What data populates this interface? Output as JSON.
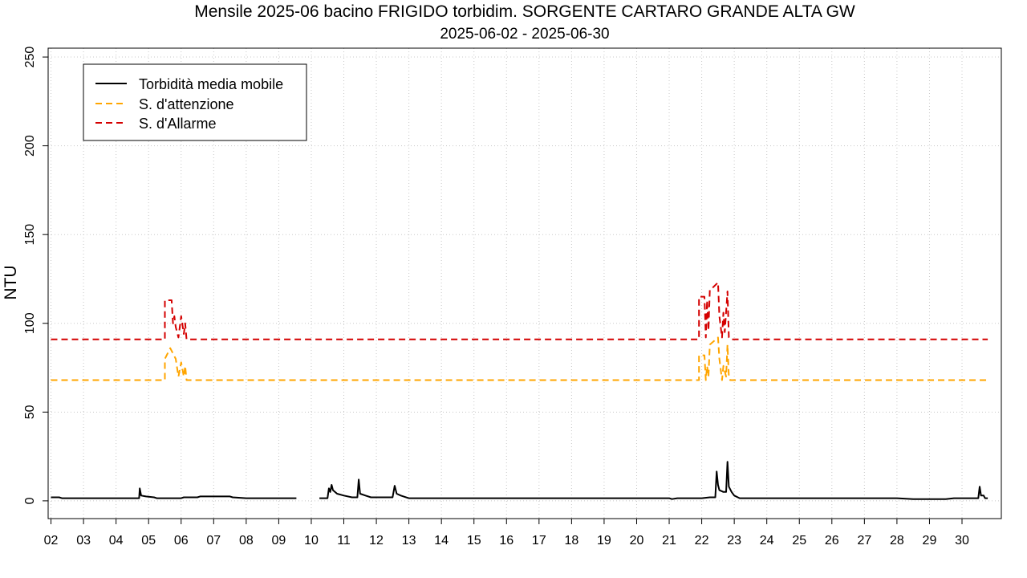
{
  "chart_data": {
    "type": "line",
    "title": "Mensile 2025-06 bacino FRIGIDO torbidim. SORGENTE CARTARO GRANDE ALTA GW",
    "subtitle": "2025-06-02 - 2025-06-30",
    "ylabel": "NTU",
    "xlabel": "",
    "xlim": [
      "2025-06-01T21:54",
      "2025-07-01T05:00"
    ],
    "ylim": [
      -10,
      255
    ],
    "grid": true,
    "legend_position": "top-left",
    "x_ticks": [
      {
        "date": "2025-06-02",
        "label": "02"
      },
      {
        "date": "2025-06-03",
        "label": "03"
      },
      {
        "date": "2025-06-04",
        "label": "04"
      },
      {
        "date": "2025-06-05",
        "label": "05"
      },
      {
        "date": "2025-06-06",
        "label": "06"
      },
      {
        "date": "2025-06-07",
        "label": "07"
      },
      {
        "date": "2025-06-08",
        "label": "08"
      },
      {
        "date": "2025-06-09",
        "label": "09"
      },
      {
        "date": "2025-06-10",
        "label": "10"
      },
      {
        "date": "2025-06-11",
        "label": "11"
      },
      {
        "date": "2025-06-12",
        "label": "12"
      },
      {
        "date": "2025-06-13",
        "label": "13"
      },
      {
        "date": "2025-06-14",
        "label": "14"
      },
      {
        "date": "2025-06-15",
        "label": "15"
      },
      {
        "date": "2025-06-16",
        "label": "16"
      },
      {
        "date": "2025-06-17",
        "label": "17"
      },
      {
        "date": "2025-06-18",
        "label": "18"
      },
      {
        "date": "2025-06-19",
        "label": "19"
      },
      {
        "date": "2025-06-20",
        "label": "20"
      },
      {
        "date": "2025-06-21",
        "label": "21"
      },
      {
        "date": "2025-06-22",
        "label": "22"
      },
      {
        "date": "2025-06-23",
        "label": "23"
      },
      {
        "date": "2025-06-24",
        "label": "24"
      },
      {
        "date": "2025-06-25",
        "label": "25"
      },
      {
        "date": "2025-06-26",
        "label": "26"
      },
      {
        "date": "2025-06-27",
        "label": "27"
      },
      {
        "date": "2025-06-28",
        "label": "28"
      },
      {
        "date": "2025-06-29",
        "label": "29"
      },
      {
        "date": "2025-06-30",
        "label": "30"
      }
    ],
    "y_ticks": [
      0,
      50,
      100,
      150,
      200,
      250
    ],
    "series": [
      {
        "name": "Torbidità media mobile",
        "color": "#000000",
        "style": "solid",
        "segments": [
          [
            [
              "2025-06-02T00:00",
              2
            ],
            [
              "2025-06-02T06:00",
              2
            ],
            [
              "2025-06-02T08:00",
              1.5
            ],
            [
              "2025-06-03T12:00",
              1.5
            ],
            [
              "2025-06-04T12:00",
              1.5
            ],
            [
              "2025-06-04T17:00",
              1.5
            ],
            [
              "2025-06-04T17:30",
              7
            ],
            [
              "2025-06-04T18:30",
              3
            ],
            [
              "2025-06-04T22:00",
              2.5
            ],
            [
              "2025-06-05T04:00",
              2
            ],
            [
              "2025-06-05T06:00",
              1.5
            ],
            [
              "2025-06-06T00:00",
              1.5
            ],
            [
              "2025-06-06T02:00",
              2
            ],
            [
              "2025-06-06T12:00",
              2
            ],
            [
              "2025-06-06T14:00",
              2.5
            ],
            [
              "2025-06-07T12:00",
              2.5
            ],
            [
              "2025-06-07T14:00",
              2
            ],
            [
              "2025-06-08T00:00",
              1.5
            ],
            [
              "2025-06-09T00:00",
              1.5
            ],
            [
              "2025-06-09T13:00",
              1.5
            ]
          ],
          [
            [
              "2025-06-10T06:00",
              1.5
            ],
            [
              "2025-06-10T12:00",
              1.5
            ],
            [
              "2025-06-10T13:00",
              7
            ],
            [
              "2025-06-10T14:00",
              5
            ],
            [
              "2025-06-10T15:00",
              9
            ],
            [
              "2025-06-10T16:00",
              6
            ],
            [
              "2025-06-10T19:00",
              4
            ],
            [
              "2025-06-11T00:00",
              3
            ],
            [
              "2025-06-11T06:00",
              2
            ],
            [
              "2025-06-11T10:00",
              2
            ],
            [
              "2025-06-11T11:00",
              12
            ],
            [
              "2025-06-11T12:00",
              4
            ],
            [
              "2025-06-11T16:00",
              3
            ],
            [
              "2025-06-11T20:00",
              2
            ],
            [
              "2025-06-12T00:00",
              2
            ],
            [
              "2025-06-12T12:00",
              2
            ],
            [
              "2025-06-12T13:30",
              8.5
            ],
            [
              "2025-06-12T15:00",
              4
            ],
            [
              "2025-06-12T18:00",
              3
            ],
            [
              "2025-06-13T00:00",
              1.5
            ],
            [
              "2025-06-14T00:00",
              1.5
            ],
            [
              "2025-06-16T00:00",
              1.5
            ],
            [
              "2025-06-18T00:00",
              1.5
            ],
            [
              "2025-06-20T00:00",
              1.5
            ],
            [
              "2025-06-21T00:00",
              1.5
            ],
            [
              "2025-06-21T02:00",
              1
            ],
            [
              "2025-06-21T06:00",
              1.5
            ],
            [
              "2025-06-21T22:00",
              1.5
            ],
            [
              "2025-06-22T00:00",
              1.5
            ],
            [
              "2025-06-22T06:00",
              2
            ],
            [
              "2025-06-22T10:00",
              2
            ],
            [
              "2025-06-22T11:00",
              16.5
            ],
            [
              "2025-06-22T12:00",
              9
            ],
            [
              "2025-06-22T13:00",
              6
            ],
            [
              "2025-06-22T16:00",
              5
            ],
            [
              "2025-06-22T18:00",
              5
            ],
            [
              "2025-06-22T19:00",
              22
            ],
            [
              "2025-06-22T20:00",
              8
            ],
            [
              "2025-06-22T22:00",
              5
            ],
            [
              "2025-06-23T00:00",
              3
            ],
            [
              "2025-06-23T04:00",
              1.5
            ],
            [
              "2025-06-24T00:00",
              1.5
            ],
            [
              "2025-06-26T00:00",
              1.5
            ],
            [
              "2025-06-28T00:00",
              1.5
            ],
            [
              "2025-06-28T12:00",
              1
            ],
            [
              "2025-06-29T12:00",
              1
            ],
            [
              "2025-06-29T18:00",
              1.5
            ],
            [
              "2025-06-30T12:00",
              1.5
            ],
            [
              "2025-06-30T13:00",
              8
            ],
            [
              "2025-06-30T14:00",
              3
            ],
            [
              "2025-06-30T16:00",
              3
            ],
            [
              "2025-06-30T17:00",
              1.5
            ],
            [
              "2025-06-30T19:00",
              1.5
            ]
          ]
        ]
      },
      {
        "name": "S. d'attenzione",
        "color": "#ffa500",
        "style": "dashed",
        "segments": [
          [
            [
              "2025-06-02T00:00",
              68
            ],
            [
              "2025-06-05T12:00",
              68
            ],
            [
              "2025-06-05T12:01",
              80
            ],
            [
              "2025-06-05T16:00",
              86
            ],
            [
              "2025-06-05T20:00",
              80
            ],
            [
              "2025-06-05T22:00",
              70
            ],
            [
              "2025-06-06T00:00",
              78
            ],
            [
              "2025-06-06T02:00",
              70
            ],
            [
              "2025-06-06T03:00",
              76
            ],
            [
              "2025-06-06T04:00",
              68
            ],
            [
              "2025-06-21T22:00",
              68
            ],
            [
              "2025-06-21T22:01",
              82
            ],
            [
              "2025-06-22T02:00",
              82
            ],
            [
              "2025-06-22T03:00",
              68
            ],
            [
              "2025-06-22T04:00",
              76
            ],
            [
              "2025-06-22T05:00",
              70
            ],
            [
              "2025-06-22T06:00",
              88
            ],
            [
              "2025-06-22T09:00",
              90
            ],
            [
              "2025-06-22T12:00",
              92
            ],
            [
              "2025-06-22T13:00",
              80
            ],
            [
              "2025-06-22T15:00",
              68
            ],
            [
              "2025-06-22T16:00",
              76
            ],
            [
              "2025-06-22T18:00",
              70
            ],
            [
              "2025-06-22T19:00",
              88
            ],
            [
              "2025-06-22T20:00",
              70
            ],
            [
              "2025-06-22T21:00",
              68
            ],
            [
              "2025-06-30T19:00",
              68
            ]
          ]
        ]
      },
      {
        "name": "S. d'Allarme",
        "color": "#d40000",
        "style": "dashed",
        "segments": [
          [
            [
              "2025-06-02T00:00",
              91
            ],
            [
              "2025-06-05T12:00",
              91
            ],
            [
              "2025-06-05T12:01",
              113
            ],
            [
              "2025-06-05T17:00",
              113
            ],
            [
              "2025-06-05T18:00",
              100
            ],
            [
              "2025-06-05T19:00",
              104
            ],
            [
              "2025-06-05T20:00",
              98
            ],
            [
              "2025-06-05T22:00",
              92
            ],
            [
              "2025-06-06T00:00",
              104
            ],
            [
              "2025-06-06T02:00",
              94
            ],
            [
              "2025-06-06T03:00",
              100
            ],
            [
              "2025-06-06T04:00",
              91
            ],
            [
              "2025-06-21T22:00",
              91
            ],
            [
              "2025-06-21T22:01",
              115
            ],
            [
              "2025-06-22T02:00",
              115
            ],
            [
              "2025-06-22T03:00",
              92
            ],
            [
              "2025-06-22T04:00",
              113
            ],
            [
              "2025-06-22T05:00",
              96
            ],
            [
              "2025-06-22T06:00",
              119
            ],
            [
              "2025-06-22T08:00",
              120
            ],
            [
              "2025-06-22T12:00",
              123
            ],
            [
              "2025-06-22T13:00",
              104
            ],
            [
              "2025-06-22T15:00",
              92
            ],
            [
              "2025-06-22T16:00",
              106
            ],
            [
              "2025-06-22T17:00",
              95
            ],
            [
              "2025-06-22T19:00",
              118
            ],
            [
              "2025-06-22T20:00",
              92
            ],
            [
              "2025-06-22T21:00",
              91
            ],
            [
              "2025-06-30T19:00",
              91
            ]
          ]
        ]
      }
    ]
  }
}
